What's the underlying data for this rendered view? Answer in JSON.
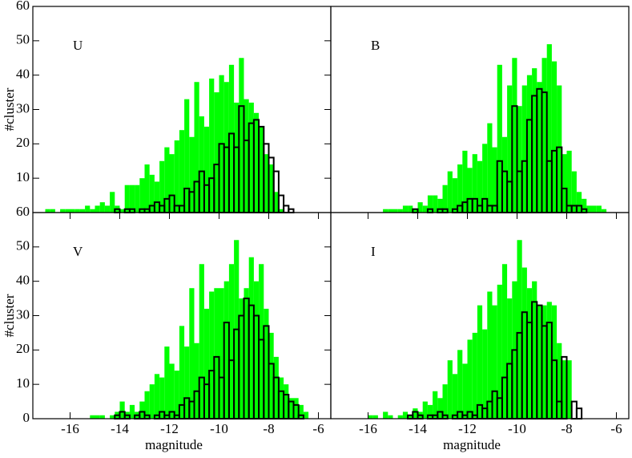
{
  "chart_data": [
    {
      "type": "histogram",
      "label": "U",
      "ylabel": "#cluster",
      "bins": [
        -17,
        -16.8,
        -16.6,
        -16.4,
        -16.2,
        -16,
        -15.8,
        -15.6,
        -15.4,
        -15.2,
        -15,
        -14.8,
        -14.6,
        -14.4,
        -14.2,
        -14,
        -13.8,
        -13.6,
        -13.4,
        -13.2,
        -13,
        -12.8,
        -12.6,
        -12.4,
        -12.2,
        -12,
        -11.8,
        -11.6,
        -11.4,
        -11.2,
        -11,
        -10.8,
        -10.6,
        -10.4,
        -10.2,
        -10,
        -9.8,
        -9.6,
        -9.4,
        -9.2,
        -9,
        -8.8,
        -8.6,
        -8.4,
        -8.2,
        -8,
        -7.8,
        -7.6,
        -7.4,
        -7.2,
        -7,
        -6.8,
        -6.6,
        -6.4,
        -6.2,
        -6
      ],
      "series": [
        {
          "color": "#00ff00",
          "values": [
            1,
            1,
            0,
            1,
            1,
            1,
            1,
            1,
            2,
            1,
            2,
            3,
            2,
            6,
            2,
            1,
            8,
            8,
            8,
            10,
            14,
            11,
            9,
            15,
            19,
            17,
            21,
            24,
            33,
            22,
            38,
            28,
            25,
            39,
            35,
            40,
            38,
            43,
            32,
            45,
            33,
            32,
            29,
            25,
            17,
            14,
            6,
            1,
            0,
            0,
            0,
            0,
            0,
            0,
            0
          ]
        },
        {
          "color": "#000000",
          "values": [
            0,
            0,
            0,
            0,
            0,
            0,
            0,
            0,
            0,
            0,
            0,
            0,
            0,
            0,
            1,
            0,
            1,
            1,
            0,
            1,
            1,
            2,
            3,
            2,
            4,
            5,
            2,
            2,
            7,
            6,
            9,
            12,
            8,
            10,
            14,
            20,
            19,
            23,
            19,
            31,
            21,
            26,
            27,
            25,
            20,
            16,
            12,
            5,
            2,
            1,
            0,
            0,
            0,
            0,
            0
          ]
        }
      ],
      "xlim": [
        -17.5,
        -5.5
      ],
      "ylim": [
        0,
        60
      ],
      "yticks": [
        10,
        20,
        30,
        40,
        50,
        60
      ]
    },
    {
      "type": "histogram",
      "label": "B",
      "bins": [
        -17,
        -16.8,
        -16.6,
        -16.4,
        -16.2,
        -16,
        -15.8,
        -15.6,
        -15.4,
        -15.2,
        -15,
        -14.8,
        -14.6,
        -14.4,
        -14.2,
        -14,
        -13.8,
        -13.6,
        -13.4,
        -13.2,
        -13,
        -12.8,
        -12.6,
        -12.4,
        -12.2,
        -12,
        -11.8,
        -11.6,
        -11.4,
        -11.2,
        -11,
        -10.8,
        -10.6,
        -10.4,
        -10.2,
        -10,
        -9.8,
        -9.6,
        -9.4,
        -9.2,
        -9,
        -8.8,
        -8.6,
        -8.4,
        -8.2,
        -8,
        -7.8,
        -7.6,
        -7.4,
        -7.2,
        -7,
        -6.8,
        -6.6,
        -6.4,
        -6.2,
        -6
      ],
      "series": [
        {
          "color": "#00ff00",
          "values": [
            0,
            0,
            0,
            0,
            0,
            0,
            0,
            0,
            1,
            1,
            1,
            1,
            2,
            2,
            1,
            3,
            2,
            5,
            5,
            4,
            8,
            12,
            10,
            14,
            18,
            13,
            17,
            15,
            20,
            26,
            19,
            43,
            22,
            37,
            45,
            31,
            37,
            40,
            42,
            38,
            45,
            49,
            44,
            37,
            17,
            18,
            12,
            6,
            4,
            2,
            2,
            2,
            1,
            0,
            0
          ]
        },
        {
          "color": "#000000",
          "values": [
            0,
            0,
            0,
            0,
            0,
            0,
            0,
            0,
            0,
            0,
            0,
            0,
            0,
            0,
            1,
            0,
            0,
            1,
            0,
            1,
            1,
            0,
            1,
            2,
            3,
            4,
            4,
            2,
            4,
            2,
            2,
            15,
            12,
            9,
            31,
            12,
            15,
            27,
            34,
            36,
            35,
            15,
            18,
            19,
            7,
            2,
            2,
            2,
            1,
            0,
            0,
            0,
            0,
            0,
            0
          ]
        }
      ],
      "xlim": [
        -17.5,
        -5.5
      ],
      "ylim": [
        0,
        60
      ]
    },
    {
      "type": "histogram",
      "label": "V",
      "ylabel": "#cluster",
      "xlabel": "magnitude",
      "bins": [
        -17,
        -16.8,
        -16.6,
        -16.4,
        -16.2,
        -16,
        -15.8,
        -15.6,
        -15.4,
        -15.2,
        -15,
        -14.8,
        -14.6,
        -14.4,
        -14.2,
        -14,
        -13.8,
        -13.6,
        -13.4,
        -13.2,
        -13,
        -12.8,
        -12.6,
        -12.4,
        -12.2,
        -12,
        -11.8,
        -11.6,
        -11.4,
        -11.2,
        -11,
        -10.8,
        -10.6,
        -10.4,
        -10.2,
        -10,
        -9.8,
        -9.6,
        -9.4,
        -9.2,
        -9,
        -8.8,
        -8.6,
        -8.4,
        -8.2,
        -8,
        -7.8,
        -7.6,
        -7.4,
        -7.2,
        -7,
        -6.8,
        -6.6,
        -6.4,
        -6.2,
        -6
      ],
      "series": [
        {
          "color": "#00ff00",
          "values": [
            0,
            0,
            0,
            0,
            0,
            0,
            0,
            0,
            0,
            1,
            1,
            1,
            0,
            1,
            2,
            5,
            2,
            4,
            2,
            5,
            8,
            10,
            13,
            12,
            21,
            16,
            14,
            27,
            21,
            38,
            22,
            45,
            32,
            37,
            38,
            38,
            40,
            45,
            52,
            35,
            38,
            47,
            40,
            45,
            32,
            25,
            18,
            12,
            10,
            6,
            6,
            4,
            2,
            0,
            0
          ]
        },
        {
          "color": "#000000",
          "values": [
            0,
            0,
            0,
            0,
            0,
            0,
            0,
            0,
            0,
            0,
            0,
            0,
            0,
            0,
            1,
            2,
            1,
            0,
            1,
            2,
            1,
            0,
            1,
            2,
            1,
            2,
            1,
            4,
            6,
            5,
            8,
            12,
            10,
            14,
            18,
            12,
            28,
            17,
            26,
            30,
            35,
            33,
            30,
            23,
            27,
            16,
            12,
            8,
            7,
            5,
            4,
            1,
            0,
            0,
            0
          ]
        }
      ],
      "xlim": [
        -17.5,
        -5.5
      ],
      "ylim": [
        0,
        60
      ],
      "yticks": [
        0,
        10,
        20,
        30,
        40,
        50,
        60
      ],
      "xticks": [
        -16,
        -14,
        -12,
        -10,
        -8,
        -6
      ]
    },
    {
      "type": "histogram",
      "label": "I",
      "xlabel": "magnitude",
      "bins": [
        -17,
        -16.8,
        -16.6,
        -16.4,
        -16.2,
        -16,
        -15.8,
        -15.6,
        -15.4,
        -15.2,
        -15,
        -14.8,
        -14.6,
        -14.4,
        -14.2,
        -14,
        -13.8,
        -13.6,
        -13.4,
        -13.2,
        -13,
        -12.8,
        -12.6,
        -12.4,
        -12.2,
        -12,
        -11.8,
        -11.6,
        -11.4,
        -11.2,
        -11,
        -10.8,
        -10.6,
        -10.4,
        -10.2,
        -10,
        -9.8,
        -9.6,
        -9.4,
        -9.2,
        -9,
        -8.8,
        -8.6,
        -8.4,
        -8.2,
        -8,
        -7.8,
        -7.6,
        -7.4,
        -7.2,
        -7,
        -6.8,
        -6.6,
        -6.4,
        -6.2,
        -6
      ],
      "series": [
        {
          "color": "#00ff00",
          "values": [
            0,
            0,
            0,
            0,
            0,
            1,
            1,
            0,
            2,
            1,
            0,
            1,
            2,
            1,
            3,
            2,
            5,
            4,
            8,
            6,
            10,
            17,
            13,
            20,
            16,
            23,
            25,
            33,
            26,
            37,
            33,
            39,
            45,
            35,
            40,
            52,
            44,
            38,
            40,
            33,
            33,
            34,
            33,
            22,
            17,
            17,
            0,
            0,
            0,
            0,
            0,
            0,
            0,
            0,
            0
          ]
        },
        {
          "color": "#000000",
          "values": [
            0,
            0,
            0,
            0,
            0,
            0,
            0,
            0,
            0,
            0,
            0,
            0,
            0,
            1,
            2,
            1,
            0,
            1,
            1,
            2,
            1,
            0,
            1,
            2,
            1,
            2,
            1,
            4,
            3,
            5,
            8,
            6,
            12,
            16,
            20,
            25,
            31,
            28,
            34,
            33,
            27,
            28,
            17,
            5,
            18,
            0,
            5,
            3,
            0,
            0,
            0,
            0,
            0,
            0,
            0
          ]
        }
      ],
      "xlim": [
        -17.5,
        -5.5
      ],
      "ylim": [
        0,
        60
      ],
      "xticks": [
        -16,
        -14,
        -12,
        -10,
        -8,
        -6
      ]
    }
  ]
}
